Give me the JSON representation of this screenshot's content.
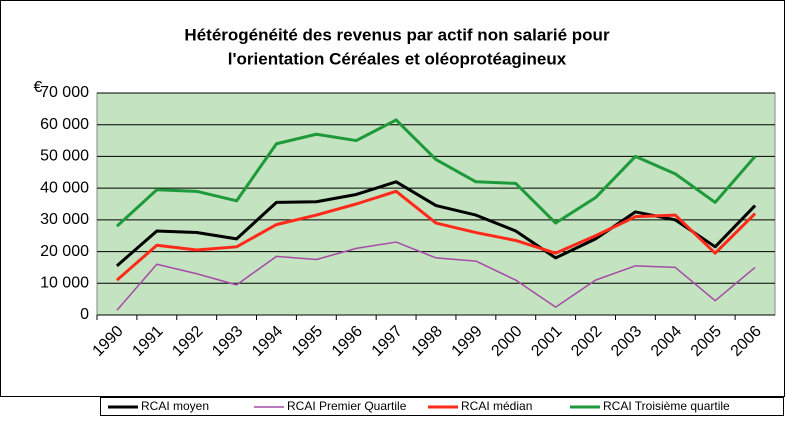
{
  "chart_data": {
    "type": "line",
    "title": "Hétérogénéité des revenus par actif non salarié pour",
    "subtitle": "l'orientation Céréales et oléoprotéagineux",
    "ylabel": "€",
    "categories": [
      "1990",
      "1991",
      "1992",
      "1993",
      "1994",
      "1995",
      "1996",
      "1997",
      "1998",
      "1999",
      "2000",
      "2001",
      "2002",
      "2003",
      "2004",
      "2005",
      "2006"
    ],
    "series": [
      {
        "name": "RCAI moyen",
        "color": "#000000",
        "width": 3,
        "values": [
          15500,
          26500,
          26000,
          24000,
          35500,
          35700,
          38000,
          42000,
          34500,
          31500,
          26500,
          18000,
          24000,
          32500,
          30000,
          21500,
          34500
        ]
      },
      {
        "name": "RCAI Premier Quartile",
        "color": "#a64ca6",
        "width": 1.5,
        "values": [
          1500,
          16000,
          13000,
          9500,
          18500,
          17500,
          21000,
          23000,
          18000,
          17000,
          11000,
          2500,
          11000,
          15500,
          15000,
          4500,
          15000
        ]
      },
      {
        "name": "RCAI médian",
        "color": "#ff2a1a",
        "width": 3,
        "values": [
          11000,
          22000,
          20500,
          21500,
          28500,
          31500,
          35000,
          39000,
          29000,
          26000,
          23500,
          19500,
          25000,
          31000,
          31500,
          19500,
          32000
        ]
      },
      {
        "name": "RCAI Troisième quartile",
        "color": "#1e9a3a",
        "width": 3,
        "values": [
          28000,
          39500,
          39000,
          36000,
          54000,
          57000,
          55000,
          61500,
          49000,
          42000,
          41500,
          29000,
          37000,
          50000,
          44500,
          35500,
          50000
        ]
      }
    ],
    "ylim": [
      0,
      70000
    ],
    "yticks": [
      0,
      {
        "value": 10000,
        "label": "10 000"
      },
      {
        "value": 20000,
        "label": "20 000"
      },
      {
        "value": 30000,
        "label": "30 000"
      },
      {
        "value": 40000,
        "label": "40 000"
      },
      {
        "value": 50000,
        "label": "50 000"
      },
      {
        "value": 60000,
        "label": "60 000"
      },
      {
        "value": 70000,
        "label": "70 000"
      }
    ],
    "grid": true,
    "plot_background": "#c4e3c0",
    "legend": "bottom"
  }
}
